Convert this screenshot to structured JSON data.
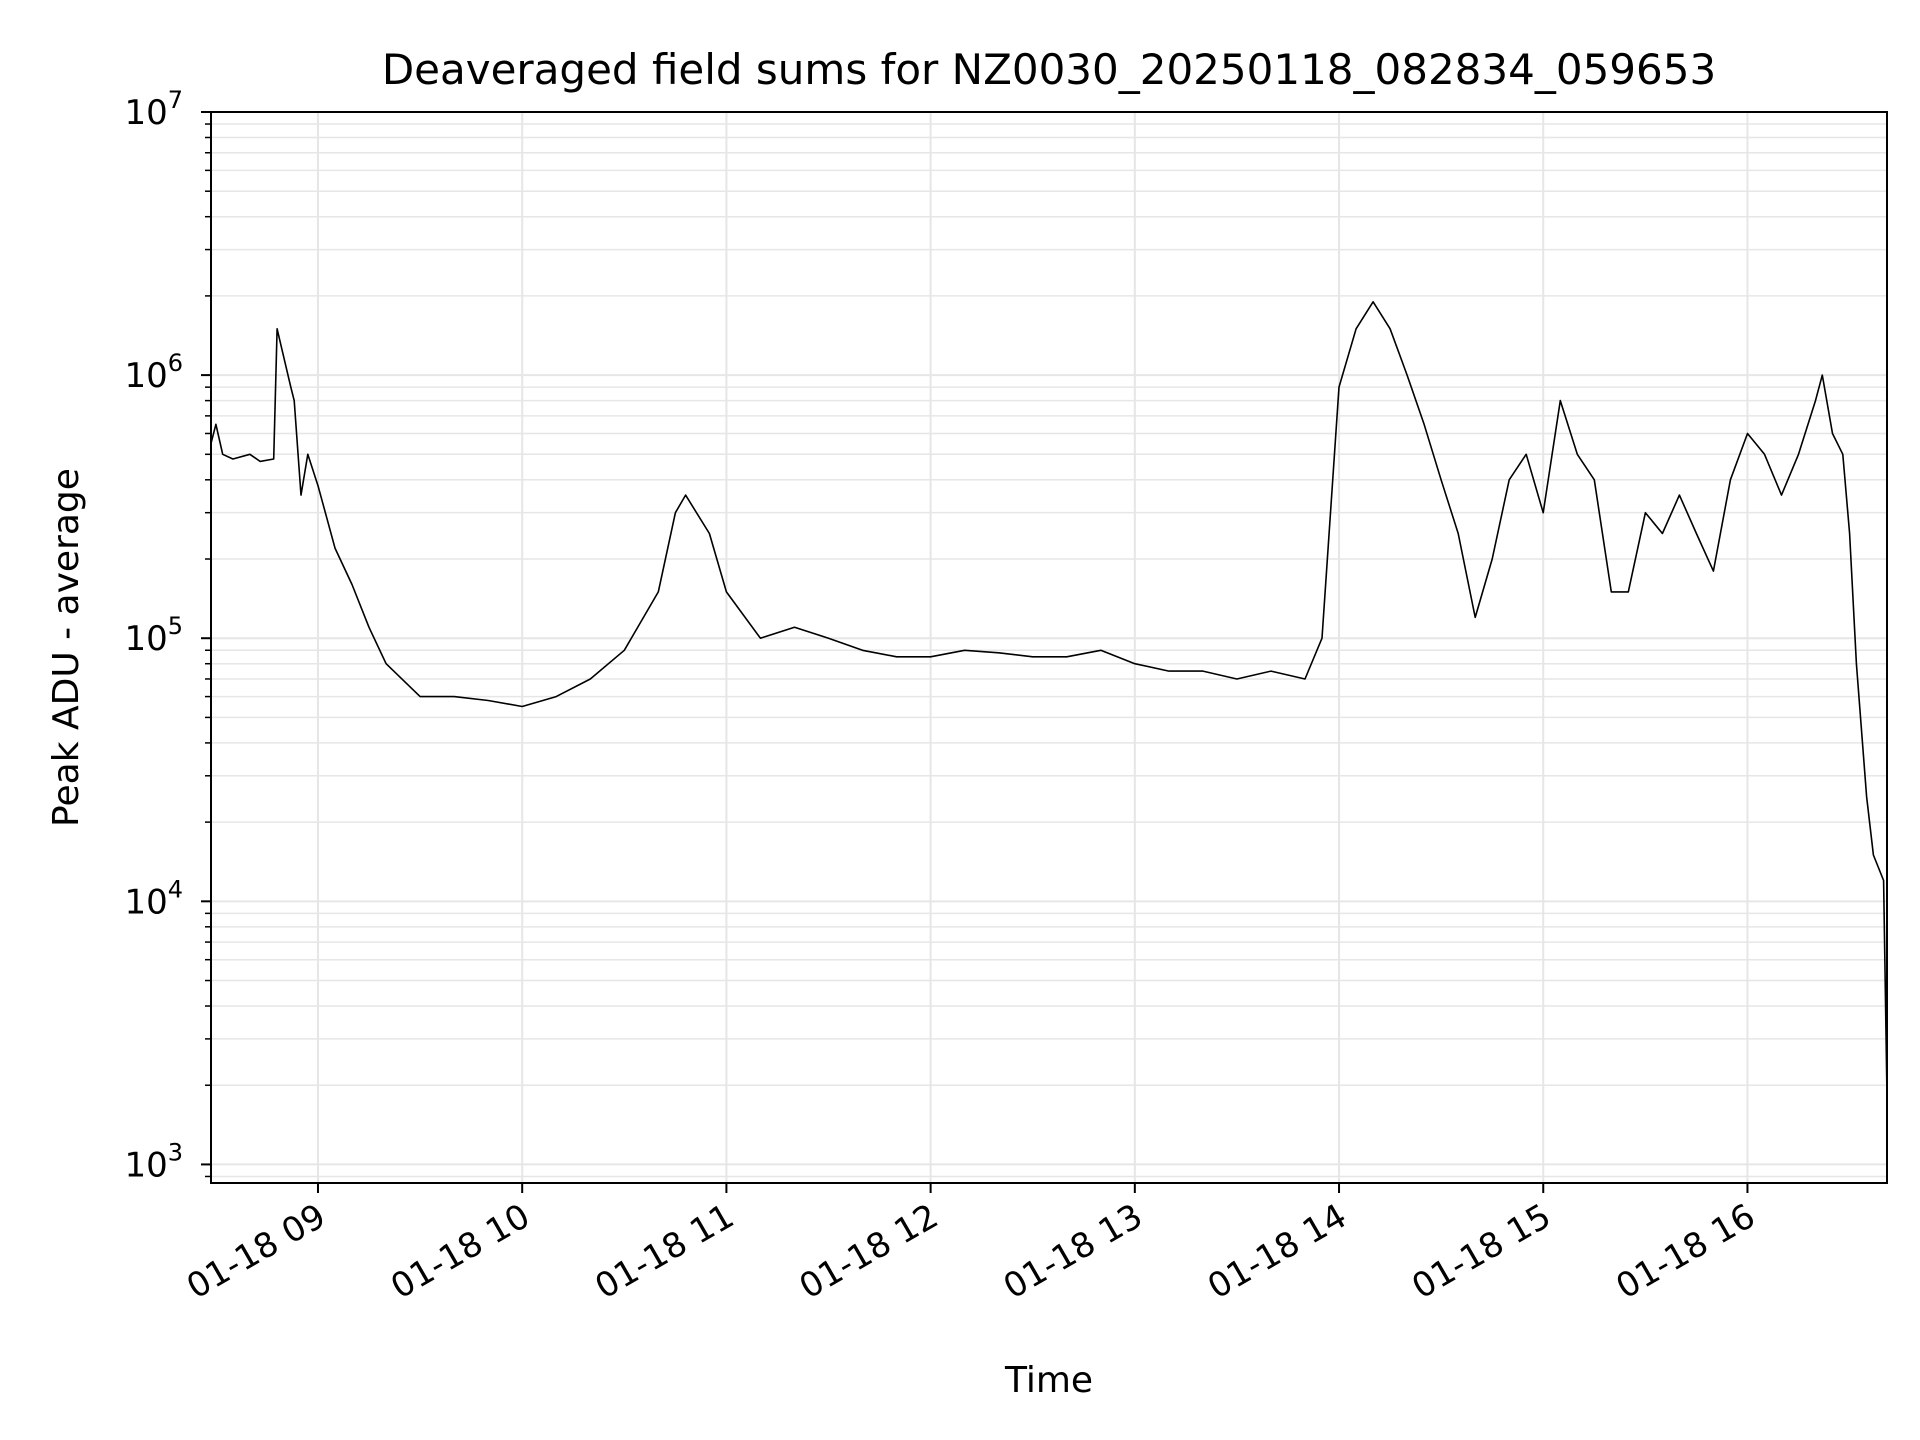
{
  "chart_data": {
    "type": "line",
    "title": "Deaveraged field sums for NZ0030_20250118_082834_059653",
    "xlabel": "Time",
    "ylabel": "Peak ADU - average",
    "yscale": "log",
    "ylim": [
      850,
      10000000
    ],
    "xlim": [
      "2025-01-18T08:28:34",
      "2025-01-18T16:41:00"
    ],
    "grid": true,
    "line_color": "#000000",
    "grid_color": "#e6e6e6",
    "x_tick_labels": [
      "01-18 09",
      "01-18 10",
      "01-18 11",
      "01-18 12",
      "01-18 13",
      "01-18 14",
      "01-18 15",
      "01-18 16"
    ],
    "x_ticks": [
      "2025-01-18T09:00:00",
      "2025-01-18T10:00:00",
      "2025-01-18T11:00:00",
      "2025-01-18T12:00:00",
      "2025-01-18T13:00:00",
      "2025-01-18T14:00:00",
      "2025-01-18T15:00:00",
      "2025-01-18T16:00:00"
    ],
    "y_ticks": [
      {
        "value": 1000,
        "base": "10",
        "exp": "3"
      },
      {
        "value": 10000,
        "base": "10",
        "exp": "4"
      },
      {
        "value": 100000,
        "base": "10",
        "exp": "5"
      },
      {
        "value": 1000000,
        "base": "10",
        "exp": "6"
      },
      {
        "value": 10000000,
        "base": "10",
        "exp": "7"
      }
    ],
    "series": [
      {
        "x": [
          "2025-01-18T08:28:34",
          "2025-01-18T08:30:00",
          "2025-01-18T08:32:00",
          "2025-01-18T08:35:00",
          "2025-01-18T08:40:00",
          "2025-01-18T08:43:00",
          "2025-01-18T08:47:00",
          "2025-01-18T08:48:00",
          "2025-01-18T08:52:00",
          "2025-01-18T08:53:00",
          "2025-01-18T08:55:00",
          "2025-01-18T08:57:00",
          "2025-01-18T09:00:00",
          "2025-01-18T09:05:00",
          "2025-01-18T09:10:00",
          "2025-01-18T09:15:00",
          "2025-01-18T09:20:00",
          "2025-01-18T09:30:00",
          "2025-01-18T09:40:00",
          "2025-01-18T09:50:00",
          "2025-01-18T10:00:00",
          "2025-01-18T10:10:00",
          "2025-01-18T10:20:00",
          "2025-01-18T10:30:00",
          "2025-01-18T10:40:00",
          "2025-01-18T10:45:00",
          "2025-01-18T10:48:00",
          "2025-01-18T10:55:00",
          "2025-01-18T11:00:00",
          "2025-01-18T11:10:00",
          "2025-01-18T11:20:00",
          "2025-01-18T11:30:00",
          "2025-01-18T11:40:00",
          "2025-01-18T11:50:00",
          "2025-01-18T12:00:00",
          "2025-01-18T12:10:00",
          "2025-01-18T12:20:00",
          "2025-01-18T12:30:00",
          "2025-01-18T12:40:00",
          "2025-01-18T12:50:00",
          "2025-01-18T13:00:00",
          "2025-01-18T13:10:00",
          "2025-01-18T13:20:00",
          "2025-01-18T13:30:00",
          "2025-01-18T13:40:00",
          "2025-01-18T13:50:00",
          "2025-01-18T13:55:00",
          "2025-01-18T14:00:00",
          "2025-01-18T14:05:00",
          "2025-01-18T14:10:00",
          "2025-01-18T14:15:00",
          "2025-01-18T14:20:00",
          "2025-01-18T14:25:00",
          "2025-01-18T14:30:00",
          "2025-01-18T14:35:00",
          "2025-01-18T14:40:00",
          "2025-01-18T14:45:00",
          "2025-01-18T14:50:00",
          "2025-01-18T14:55:00",
          "2025-01-18T15:00:00",
          "2025-01-18T15:05:00",
          "2025-01-18T15:10:00",
          "2025-01-18T15:15:00",
          "2025-01-18T15:20:00",
          "2025-01-18T15:25:00",
          "2025-01-18T15:30:00",
          "2025-01-18T15:35:00",
          "2025-01-18T15:40:00",
          "2025-01-18T15:45:00",
          "2025-01-18T15:50:00",
          "2025-01-18T15:55:00",
          "2025-01-18T16:00:00",
          "2025-01-18T16:05:00",
          "2025-01-18T16:10:00",
          "2025-01-18T16:15:00",
          "2025-01-18T16:20:00",
          "2025-01-18T16:22:00",
          "2025-01-18T16:25:00",
          "2025-01-18T16:28:00",
          "2025-01-18T16:30:00",
          "2025-01-18T16:32:00",
          "2025-01-18T16:35:00",
          "2025-01-18T16:37:00",
          "2025-01-18T16:40:00",
          "2025-01-18T16:41:00"
        ],
        "y": [
          550000,
          650000,
          500000,
          480000,
          500000,
          470000,
          480000,
          1500000,
          900000,
          800000,
          350000,
          500000,
          380000,
          220000,
          160000,
          110000,
          80000,
          60000,
          60000,
          58000,
          55000,
          60000,
          70000,
          90000,
          150000,
          300000,
          350000,
          250000,
          150000,
          100000,
          110000,
          100000,
          90000,
          85000,
          85000,
          90000,
          88000,
          85000,
          85000,
          90000,
          80000,
          75000,
          75000,
          70000,
          75000,
          70000,
          100000,
          900000,
          1500000,
          1900000,
          1500000,
          1000000,
          650000,
          400000,
          250000,
          120000,
          200000,
          400000,
          500000,
          300000,
          800000,
          500000,
          400000,
          150000,
          150000,
          300000,
          250000,
          350000,
          250000,
          180000,
          400000,
          600000,
          500000,
          350000,
          500000,
          800000,
          1000000,
          600000,
          500000,
          250000,
          80000,
          25000,
          15000,
          12000,
          1800
        ]
      }
    ]
  }
}
